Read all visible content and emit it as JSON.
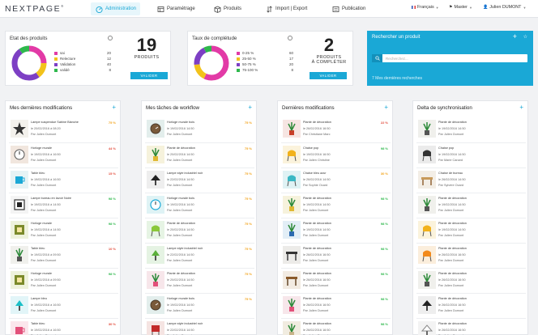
{
  "brand": {
    "name": "NEXTPAGE",
    "mark": "®",
    "accent": "#1aa8d6"
  },
  "nav": [
    {
      "label": "Administration",
      "icon": "dashboard-icon",
      "active": true
    },
    {
      "label": "Paramétrage",
      "icon": "table-icon",
      "active": false
    },
    {
      "label": "Produits",
      "icon": "box-icon",
      "active": false
    },
    {
      "label": "Import | Export",
      "icon": "import-export-icon",
      "active": false
    },
    {
      "label": "Publication",
      "icon": "publication-icon",
      "active": false
    }
  ],
  "topright": {
    "language": "Français",
    "catalog": "Master",
    "user": "Julien DUMONT"
  },
  "products_state": {
    "title": "Etat des produits",
    "legend": [
      {
        "label": "sai",
        "value": "20",
        "color": "#e23aa6"
      },
      {
        "label": "Relecture",
        "value": "12",
        "color": "#f2c21b"
      },
      {
        "label": "Validation",
        "value": "40",
        "color": "#7d3fc4"
      },
      {
        "label": "validé",
        "value": "8",
        "color": "#2eb84c"
      }
    ],
    "count": "19",
    "count_label": "PRODUITS",
    "button": "VALIDER"
  },
  "completeness": {
    "title": "Taux de complétude",
    "legend": [
      {
        "label": "0-25 %",
        "value": "60",
        "color": "#e23aa6"
      },
      {
        "label": "25-50 %",
        "value": "17",
        "color": "#f2c21b"
      },
      {
        "label": "50-75 %",
        "value": "20",
        "color": "#7d3fc4"
      },
      {
        "label": "75-100 %",
        "value": "8",
        "color": "#2eb84c"
      }
    ],
    "count": "2",
    "count_label_1": "PRODUITS",
    "count_label_2": "À COMPLÉTER",
    "button": "VALIDER"
  },
  "search": {
    "title": "Rechercher un produit",
    "placeholder": "Recherchez...",
    "recent_link": "7 Mes dernières recherches"
  },
  "columns": [
    {
      "title": "Mes dernières modifications",
      "items": [
        {
          "name": "Lampe suspendue Sabine Blanche",
          "date": "le 20/02/2016 à 08:20",
          "by": "Par Julien Dumont",
          "pct": "75 %",
          "color": "#f2a31b",
          "thumb": "lamp-star"
        },
        {
          "name": "Horloge murale",
          "date": "le 19/02/2016 à 16:50",
          "by": "Par Julien Dumont",
          "pct": "44 %",
          "color": "#e24a3a",
          "thumb": "clock"
        },
        {
          "name": "Table bleu",
          "date": "le 19/02/2016 à 16:50",
          "by": "Par Julien Dumont",
          "pct": "15 %",
          "color": "#e24a3a",
          "thumb": "mug"
        },
        {
          "name": "Lampe bureau en lavoir Noire",
          "date": "le 19/02/2016 à 14:50",
          "by": "Par Julien Dumont",
          "pct": "98 %",
          "color": "#2eb84c",
          "thumb": "frame"
        },
        {
          "name": "Horloge murale",
          "date": "le 19/02/2016 à 14:50",
          "by": "Par Julien Dumont",
          "pct": "98 %",
          "color": "#2eb84c",
          "thumb": "frame-green"
        },
        {
          "name": "Table bleu",
          "date": "le 19/02/2016 à 09:50",
          "by": "Par Julien Dumont",
          "pct": "10 %",
          "color": "#e24a3a",
          "thumb": "plant"
        },
        {
          "name": "Horloge murale",
          "date": "le 19/02/2016 à 09:50",
          "by": "Par Julien Dumont",
          "pct": "98 %",
          "color": "#2eb84c",
          "thumb": "frame-green"
        },
        {
          "name": "Lampe bleu",
          "date": "le 19/02/2016 à 16:50",
          "by": "Par Julien Dumont",
          "pct": "",
          "color": "#2eb84c",
          "thumb": "lamp-cyan"
        },
        {
          "name": "Table bleu",
          "date": "le 19/02/2016 à 16:50",
          "by": "Par Julien Dumont",
          "pct": "30 %",
          "color": "#e24a3a",
          "thumb": "mug-pink"
        }
      ]
    },
    {
      "title": "Mes tâches de workflow",
      "items": [
        {
          "name": "Horloge murale bois",
          "date": "le 19/02/2016 14:50",
          "by": "Par Julien Dumont",
          "pct": "75 %",
          "color": "#f2a31b",
          "thumb": "clock-teal"
        },
        {
          "name": "Plante de décoration",
          "date": "le 20/02/2016 14:50",
          "by": "Par Julien Dumont",
          "pct": "75 %",
          "color": "#f2a31b",
          "thumb": "plant-yellow"
        },
        {
          "name": "Lampe style industriel noir",
          "date": "le 22/02/2016 14:50",
          "by": "Par Julien Dumont",
          "pct": "75 %",
          "color": "#f2a31b",
          "thumb": "lamp-black"
        },
        {
          "name": "Horloge murale bois",
          "date": "le 19/02/2016 14:50",
          "by": "Par Julien Dumont",
          "pct": "75 %",
          "color": "#f2a31b",
          "thumb": "clock-cyan"
        },
        {
          "name": "Plante de décoration",
          "date": "le 20/02/2016 14:50",
          "by": "Par Julien Dumont",
          "pct": "75 %",
          "color": "#f2a31b",
          "thumb": "chair-green"
        },
        {
          "name": "Lampe style industriel noir",
          "date": "le 22/02/2016 14:50",
          "by": "Par Julien Dumont",
          "pct": "75 %",
          "color": "#f2a31b",
          "thumb": "lamp-green"
        },
        {
          "name": "Plante de décoration",
          "date": "le 20/02/2016 14:50",
          "by": "Par Julien Dumont",
          "pct": "75 %",
          "color": "#f2a31b",
          "thumb": "plant-pink"
        },
        {
          "name": "Horloge murale bois",
          "date": "le 19/02/2016 14:50",
          "by": "Par Julien Dumont",
          "pct": "75 %",
          "color": "#f2a31b",
          "thumb": "clock-teal"
        },
        {
          "name": "Lampe style industriel noir",
          "date": "le 22/02/2016 14:50",
          "by": "Par Julien Dumont",
          "pct": "",
          "color": "#f2a31b",
          "thumb": "chair-red"
        }
      ]
    },
    {
      "title": "Dernières modifications",
      "items": [
        {
          "name": "Plante de décoration",
          "date": "le 26/02/2016 16:50",
          "by": "Par Christiane Marc",
          "pct": "22 %",
          "color": "#e24a3a",
          "thumb": "plant-red"
        },
        {
          "name": "Chaise pop",
          "date": "le 19/02/2016 16:50",
          "by": "Par Julien Christine",
          "pct": "98 %",
          "color": "#2eb84c",
          "thumb": "chair-yellow"
        },
        {
          "name": "Chaise bleu azur",
          "date": "le 26/02/2016 14:50",
          "by": "Par Sophie Ocard",
          "pct": "30 %",
          "color": "#f2a31b",
          "thumb": "chair-teal"
        },
        {
          "name": "Plante de décoration",
          "date": "le 19/02/2016 14:50",
          "by": "Par Julien Dumont",
          "pct": "98 %",
          "color": "#2eb84c",
          "thumb": "plant-yellow"
        },
        {
          "name": "Plante de décoration",
          "date": "le 19/02/2016 14:50",
          "by": "Par Julien Dumont",
          "pct": "98 %",
          "color": "#2eb84c",
          "thumb": "plant-blue"
        },
        {
          "name": "Plante de décoration",
          "date": "le 26/02/2016 16:50",
          "by": "Par Julien Dumont",
          "pct": "98 %",
          "color": "#2eb84c",
          "thumb": "table-dark"
        },
        {
          "name": "Plante de décoration",
          "date": "le 26/02/2016 16:50",
          "by": "Par Julien Dumont",
          "pct": "98 %",
          "color": "#2eb84c",
          "thumb": "table-brown"
        },
        {
          "name": "Plante de décoration",
          "date": "le 26/02/2016 16:50",
          "by": "Par Julien Dumont",
          "pct": "98 %",
          "color": "#2eb84c",
          "thumb": "plant-pink"
        },
        {
          "name": "Plante de décoration",
          "date": "le 26/02/2016 16:50",
          "by": "Par Julien Dumont",
          "pct": "98 %",
          "color": "#2eb84c",
          "thumb": "plant-beige"
        }
      ]
    },
    {
      "title": "Delta de synchronisation",
      "items": [
        {
          "name": "Plante de décoration",
          "date": "le 19/02/2016 14:50",
          "by": "Par Julien Dumont",
          "pct": "",
          "color": "#2eb84c",
          "thumb": "plant"
        },
        {
          "name": "Chaise pop",
          "date": "le 19/02/2016 14:50",
          "by": "Par Marie Canard",
          "pct": "",
          "color": "#2eb84c",
          "thumb": "chair-dark"
        },
        {
          "name": "Chaise de bureau",
          "date": "le 26/02/2016 14:50",
          "by": "Par Sylvère Ocard",
          "pct": "",
          "color": "#2eb84c",
          "thumb": "desk"
        },
        {
          "name": "Plante de décoration",
          "date": "le 19/02/2016 14:50",
          "by": "Par Julien Dumont",
          "pct": "",
          "color": "#2eb84c",
          "thumb": "plant"
        },
        {
          "name": "Plante de décoration",
          "date": "le 19/02/2016 14:50",
          "by": "Par Julien Dumont",
          "pct": "",
          "color": "#2eb84c",
          "thumb": "chair-yellow"
        },
        {
          "name": "Plante de décoration",
          "date": "le 26/02/2016 16:50",
          "by": "Par Julien Dumont",
          "pct": "",
          "color": "#2eb84c",
          "thumb": "chair-orange"
        },
        {
          "name": "Plante de décoration",
          "date": "le 26/02/2016 16:50",
          "by": "Par Julien Dumont",
          "pct": "",
          "color": "#2eb84c",
          "thumb": "plant"
        },
        {
          "name": "Plante de décoration",
          "date": "le 26/02/2016 16:50",
          "by": "Par Julien Dumont",
          "pct": "",
          "color": "#2eb84c",
          "thumb": "lamp-black"
        },
        {
          "name": "Plante de décoration",
          "date": "le 26/02/2016 16:50",
          "by": "Par Julien Dumont",
          "pct": "",
          "color": "#2eb84c",
          "thumb": "lamp-white"
        }
      ]
    }
  ]
}
